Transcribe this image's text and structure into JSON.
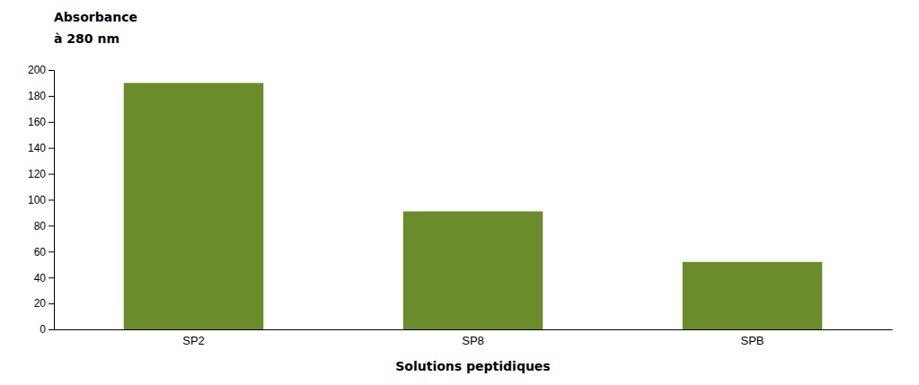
{
  "chart_data": {
    "type": "bar",
    "categories": [
      "SP2",
      "SP8",
      "SPB"
    ],
    "values": [
      190,
      91,
      52
    ],
    "color": "#6b8c2a",
    "xlabel": "Solutions peptidiques",
    "ylabel": [
      "Absorbance",
      "à 280 nm"
    ],
    "ylim": [
      0,
      200
    ],
    "yticks": [
      0,
      20,
      40,
      60,
      80,
      100,
      120,
      140,
      160,
      180,
      200
    ],
    "grid": false
  }
}
